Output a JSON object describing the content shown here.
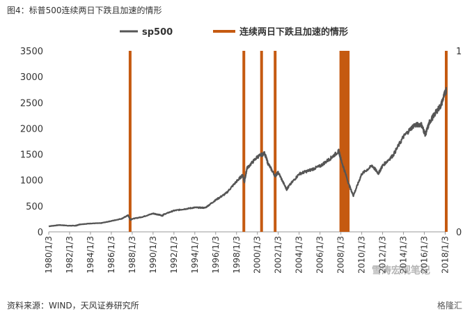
{
  "caption": "图4：标普500连续两日下跌且加速的情形",
  "source": "资料来源：WIND，天风证券研究所",
  "brand": "格隆汇",
  "watermark": "雪涛宏观笔记",
  "colors": {
    "line": "#555555",
    "event": "#C55A11"
  },
  "chart_data": {
    "type": "line",
    "legend": [
      "sp500",
      "连续两日下跌且加速的情形"
    ],
    "y_left": {
      "min": 0,
      "max": 3500,
      "ticks": [
        "0",
        "500",
        "1000",
        "1500",
        "2000",
        "2500",
        "3000",
        "3500"
      ]
    },
    "y_right": {
      "min": 0,
      "max": 1,
      "ticks": [
        "0",
        "1"
      ]
    },
    "x": {
      "min": 1980.0,
      "max": 2018.1,
      "ticks": [
        "1980/1/3",
        "1982/1/3",
        "1984/1/3",
        "1986/1/3",
        "1988/1/3",
        "1990/1/3",
        "1992/1/3",
        "1994/1/3",
        "1996/1/3",
        "1998/1/3",
        "2000/1/3",
        "2002/1/3",
        "2004/1/3",
        "2006/1/3",
        "2008/1/3",
        "2010/1/3",
        "2012/1/3",
        "2014/1/3",
        "2016/1/3",
        "2018/1/3"
      ]
    },
    "series": [
      {
        "name": "sp500",
        "axis": "left",
        "points": [
          [
            1980.0,
            108
          ],
          [
            1981.0,
            132
          ],
          [
            1982.0,
            118
          ],
          [
            1982.6,
            120
          ],
          [
            1983.0,
            145
          ],
          [
            1984.0,
            162
          ],
          [
            1985.0,
            168
          ],
          [
            1986.0,
            210
          ],
          [
            1987.0,
            255
          ],
          [
            1987.6,
            320
          ],
          [
            1987.85,
            230
          ],
          [
            1988.0,
            250
          ],
          [
            1989.0,
            290
          ],
          [
            1990.0,
            355
          ],
          [
            1990.6,
            330
          ],
          [
            1990.9,
            310
          ],
          [
            1991.0,
            335
          ],
          [
            1992.0,
            410
          ],
          [
            1993.0,
            440
          ],
          [
            1994.0,
            470
          ],
          [
            1995.0,
            465
          ],
          [
            1996.0,
            615
          ],
          [
            1997.0,
            745
          ],
          [
            1998.0,
            975
          ],
          [
            1998.6,
            1100
          ],
          [
            1998.75,
            960
          ],
          [
            1999.0,
            1230
          ],
          [
            2000.0,
            1450
          ],
          [
            2000.7,
            1520
          ],
          [
            2001.0,
            1330
          ],
          [
            2001.7,
            1080
          ],
          [
            2002.0,
            1150
          ],
          [
            2002.8,
            820
          ],
          [
            2003.0,
            880
          ],
          [
            2004.0,
            1120
          ],
          [
            2005.0,
            1190
          ],
          [
            2006.0,
            1270
          ],
          [
            2007.0,
            1420
          ],
          [
            2007.8,
            1560
          ],
          [
            2008.0,
            1410
          ],
          [
            2008.8,
            900
          ],
          [
            2009.2,
            700
          ],
          [
            2010.0,
            1120
          ],
          [
            2011.0,
            1280
          ],
          [
            2011.6,
            1130
          ],
          [
            2012.0,
            1280
          ],
          [
            2013.0,
            1480
          ],
          [
            2014.0,
            1840
          ],
          [
            2015.0,
            2060
          ],
          [
            2015.7,
            2080
          ],
          [
            2016.1,
            1880
          ],
          [
            2016.5,
            2120
          ],
          [
            2017.0,
            2280
          ],
          [
            2017.6,
            2450
          ],
          [
            2018.0,
            2700
          ],
          [
            2018.1,
            2730
          ]
        ]
      },
      {
        "name": "连续两日下跌且加速的情形",
        "axis": "right",
        "events": [
          1987.8,
          1998.7,
          2000.4,
          2001.7,
          2008.0,
          2008.2,
          2008.4,
          2008.55,
          2008.7,
          2018.1
        ]
      }
    ]
  }
}
